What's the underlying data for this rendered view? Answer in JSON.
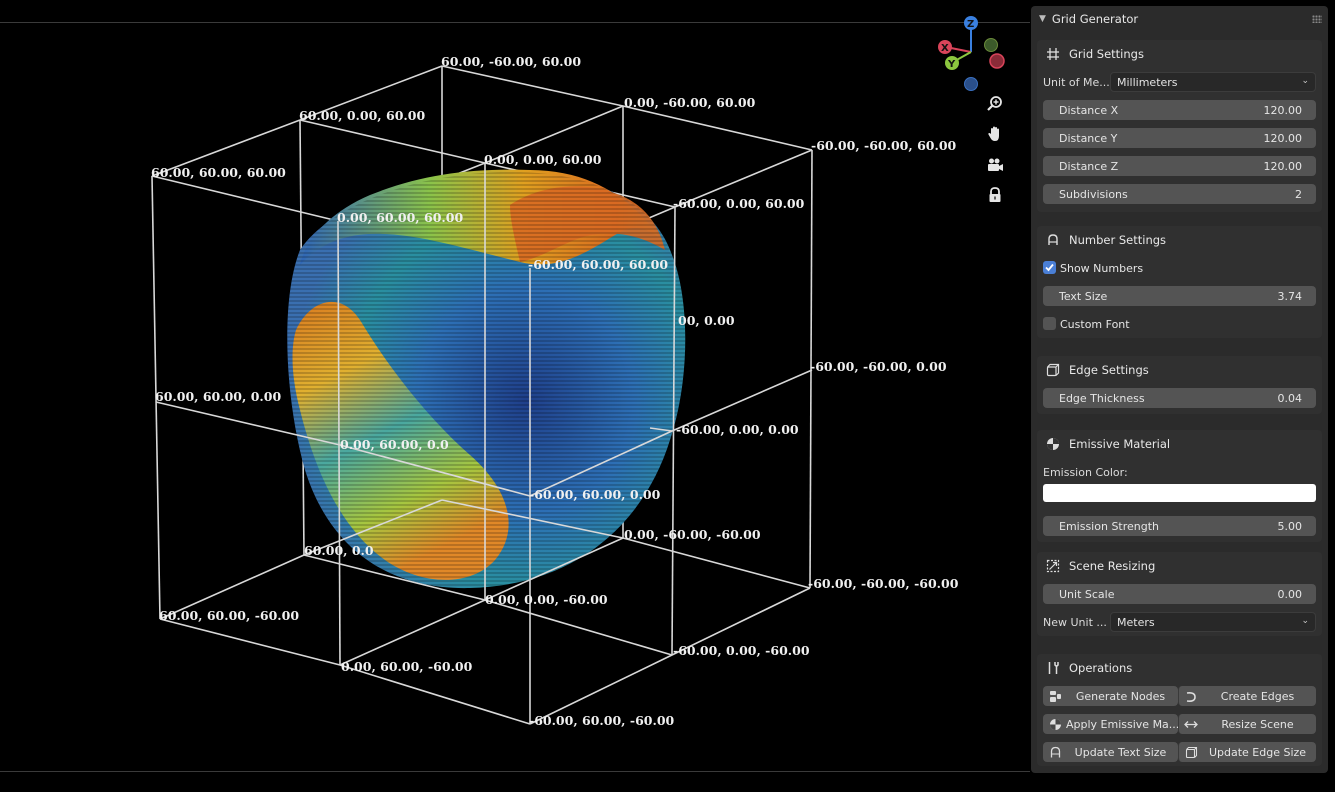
{
  "viewport": {
    "labels": [
      "60.00, -60.00, 60.00",
      "60.00, 0.00, 60.00",
      "0.00, -60.00, 60.00",
      "60.00, 60.00, 60.00",
      "0.00, 0.00, 60.00",
      "-60.00, -60.00, 60.00",
      "0.00, 60.00, 60.00",
      "-60.00, 0.00, 60.00",
      "-60.00, 60.00, 60.00",
      "00, 0.00",
      "-60.00, -60.00, 0.00",
      "60.00, 60.00, 0.00",
      "-60.00, 0.00, 0.00",
      "0.00, 60.00, 0.0",
      "-60.00, 60.00, 0.00",
      "0.00, -60.00, -60.00",
      "60.00, 0.0",
      "-60.00, -60.00, -60.00",
      "0.00, 0.00, -60.00",
      "60.00, 60.00, -60.00",
      "-60.00, 0.00, -60.00",
      "0.00, 60.00, -60.00",
      "-60.00, 60.00, -60.00"
    ],
    "gizmo": {
      "z": "Z",
      "x": "X",
      "y": "Y",
      "z_color": "#3a80e0",
      "x_color": "#d9445a",
      "y_color": "#8cc63f"
    }
  },
  "panel": {
    "title": "Grid Generator",
    "grid_settings": {
      "title": "Grid Settings",
      "unit_label": "Unit of Me...",
      "unit_value": "Millimeters",
      "distance_x_label": "Distance X",
      "distance_x_value": "120.00",
      "distance_y_label": "Distance Y",
      "distance_y_value": "120.00",
      "distance_z_label": "Distance Z",
      "distance_z_value": "120.00",
      "subdivisions_label": "Subdivisions",
      "subdivisions_value": "2"
    },
    "number_settings": {
      "title": "Number Settings",
      "show_numbers_label": "Show Numbers",
      "show_numbers_checked": true,
      "text_size_label": "Text Size",
      "text_size_value": "3.74",
      "custom_font_label": "Custom Font",
      "custom_font_checked": false
    },
    "edge_settings": {
      "title": "Edge Settings",
      "edge_thickness_label": "Edge Thickness",
      "edge_thickness_value": "0.04"
    },
    "emissive_material": {
      "title": "Emissive Material",
      "emission_color_label": "Emission Color:",
      "emission_color": "#ffffff",
      "emission_strength_label": "Emission Strength",
      "emission_strength_value": "5.00"
    },
    "scene_resizing": {
      "title": "Scene Resizing",
      "unit_scale_label": "Unit Scale",
      "unit_scale_value": "0.00",
      "new_unit_label": "New Unit ...",
      "new_unit_value": "Meters"
    },
    "operations": {
      "title": "Operations",
      "generate_nodes": "Generate Nodes",
      "create_edges": "Create Edges",
      "apply_emissive": "Apply Emissive Ma...",
      "resize_scene": "Resize Scene",
      "update_text_size": "Update Text Size",
      "update_edge_size": "Update Edge Size"
    }
  }
}
